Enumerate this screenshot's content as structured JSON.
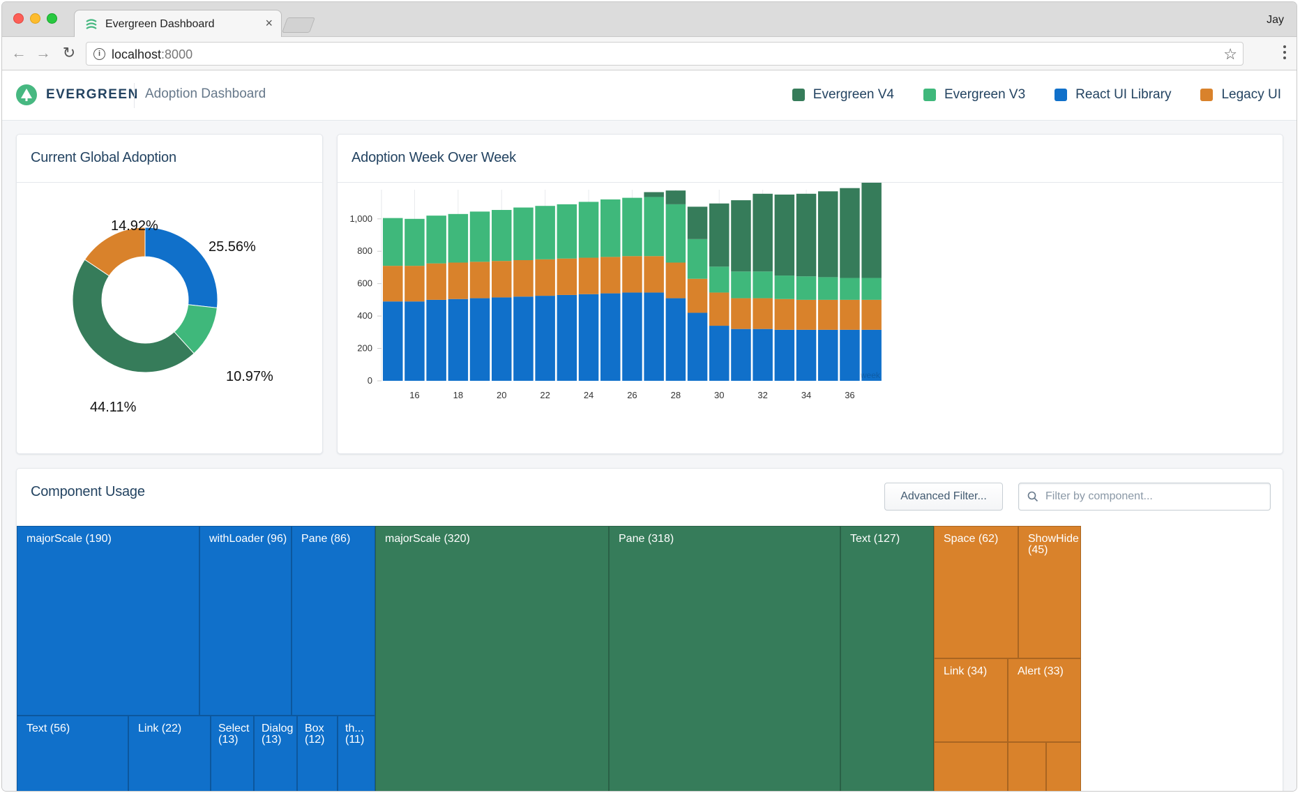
{
  "browser": {
    "tab_title": "Evergreen Dashboard",
    "tab_close": "×",
    "profile_name": "Jay",
    "url_host": "localhost",
    "url_port": ":8000"
  },
  "header": {
    "brand": "EVERGREEN",
    "subtitle": "Adoption Dashboard",
    "legend": [
      {
        "label": "Evergreen V4",
        "color": "#367c5a"
      },
      {
        "label": "Evergreen V3",
        "color": "#3fb87b"
      },
      {
        "label": "React UI Library",
        "color": "#1070ca"
      },
      {
        "label": "Legacy UI",
        "color": "#d9822b"
      }
    ]
  },
  "global_adoption": {
    "title": "Current Global Adoption"
  },
  "week_over_week": {
    "title": "Adoption Week Over Week"
  },
  "component_usage": {
    "title": "Component Usage",
    "filter_button": "Advanced Filter...",
    "search_placeholder": "Filter by component...",
    "treemap": [
      {
        "label": "majorScale (190)",
        "series": "React UI Library"
      },
      {
        "label": "withLoader (96)",
        "series": "React UI Library"
      },
      {
        "label": "Pane (86)",
        "series": "React UI Library"
      },
      {
        "label": "Text (56)",
        "series": "React UI Library"
      },
      {
        "label": "Link (22)",
        "series": "React UI Library"
      },
      {
        "label": "Select\n(13)",
        "series": "React UI Library"
      },
      {
        "label": "Dialog\n(13)",
        "series": "React UI Library"
      },
      {
        "label": "Box\n(12)",
        "series": "React UI Library"
      },
      {
        "label": "th...\n(11)",
        "series": "React UI Library"
      },
      {
        "label": "majorScale (320)",
        "series": "Evergreen V4"
      },
      {
        "label": "Pane (318)",
        "series": "Evergreen V4"
      },
      {
        "label": "Text (127)",
        "series": "Evergreen V4"
      },
      {
        "label": "Space (62)",
        "series": "Legacy UI"
      },
      {
        "label": "ShowHide\n(45)",
        "series": "Legacy UI"
      },
      {
        "label": "Link (34)",
        "series": "Legacy UI"
      },
      {
        "label": "Alert (33)",
        "series": "Legacy UI"
      }
    ]
  },
  "chart_data": [
    {
      "type": "pie",
      "variant": "donut",
      "categories": [
        "React UI Library",
        "Evergreen V3",
        "Evergreen V4",
        "Legacy UI"
      ],
      "values": [
        25.56,
        10.97,
        44.11,
        14.92
      ],
      "labels": [
        "25.56%",
        "10.97%",
        "44.11%",
        "14.92%"
      ],
      "colors": [
        "#1070ca",
        "#3fb87b",
        "#367c5a",
        "#d9822b"
      ]
    },
    {
      "type": "bar",
      "stacked": true,
      "x": [
        15,
        16,
        17,
        18,
        19,
        20,
        21,
        22,
        23,
        24,
        25,
        26,
        27,
        28,
        29,
        30,
        31,
        32,
        33,
        34,
        35,
        36,
        37
      ],
      "x_ticks": [
        "16",
        "18",
        "20",
        "22",
        "24",
        "26",
        "28",
        "30",
        "32",
        "34",
        "36"
      ],
      "y_ticks": [
        "0",
        "200",
        "400",
        "600",
        "800",
        "1,000"
      ],
      "ylim": [
        0,
        1180
      ],
      "grid": true,
      "series": [
        {
          "name": "React UI Library",
          "color": "#1070ca",
          "values": [
            490,
            490,
            500,
            505,
            510,
            515,
            520,
            525,
            530,
            535,
            540,
            545,
            545,
            510,
            420,
            340,
            320,
            320,
            315,
            315,
            315,
            315,
            315
          ]
        },
        {
          "name": "Legacy UI",
          "color": "#d9822b",
          "values": [
            220,
            220,
            225,
            225,
            225,
            225,
            225,
            225,
            225,
            225,
            225,
            225,
            225,
            220,
            210,
            205,
            190,
            190,
            190,
            185,
            185,
            185,
            185
          ]
        },
        {
          "name": "Evergreen V3",
          "color": "#3fb87b",
          "values": [
            295,
            290,
            295,
            300,
            310,
            315,
            325,
            330,
            335,
            345,
            355,
            360,
            365,
            360,
            245,
            160,
            165,
            165,
            145,
            145,
            140,
            135,
            135
          ]
        },
        {
          "name": "Evergreen V4",
          "color": "#367c5a",
          "values": [
            0,
            0,
            0,
            0,
            0,
            0,
            0,
            0,
            0,
            0,
            0,
            0,
            30,
            85,
            200,
            390,
            440,
            480,
            500,
            510,
            530,
            555,
            605
          ]
        }
      ],
      "watermark": "week"
    }
  ]
}
